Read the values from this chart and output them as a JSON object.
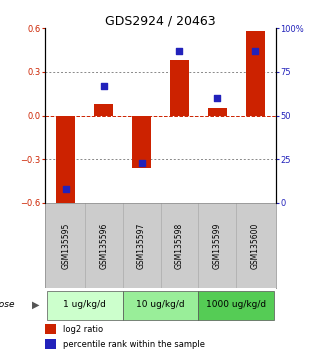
{
  "title": "GDS2924 / 20463",
  "samples": [
    "GSM135595",
    "GSM135596",
    "GSM135597",
    "GSM135598",
    "GSM135599",
    "GSM135600"
  ],
  "log2_ratio": [
    -0.63,
    0.08,
    -0.36,
    0.38,
    0.05,
    0.58
  ],
  "percentile_rank": [
    8,
    67,
    23,
    87,
    60,
    87
  ],
  "ylim_left": [
    -0.6,
    0.6
  ],
  "ylim_right": [
    0,
    100
  ],
  "yticks_left": [
    -0.6,
    -0.3,
    0,
    0.3,
    0.6
  ],
  "yticks_right": [
    0,
    25,
    50,
    75,
    100
  ],
  "ytick_labels_right": [
    "0",
    "25",
    "50",
    "75",
    "100%"
  ],
  "bar_color": "#cc2200",
  "dot_color": "#2222bb",
  "dose_groups": [
    {
      "label": "1 ug/kg/d",
      "samples": [
        0,
        1
      ],
      "color": "#ccffcc"
    },
    {
      "label": "10 ug/kg/d",
      "samples": [
        2,
        3
      ],
      "color": "#99ee99"
    },
    {
      "label": "1000 ug/kg/d",
      "samples": [
        4,
        5
      ],
      "color": "#55cc55"
    }
  ],
  "dose_label": "dose",
  "legend_bar_label": "log2 ratio",
  "legend_dot_label": "percentile rank within the sample",
  "title_fontsize": 9,
  "tick_fontsize": 6,
  "sample_label_fontsize": 5.5,
  "dose_fontsize": 6.5,
  "legend_fontsize": 6,
  "bg_color": "#ffffff",
  "sample_bg_color": "#cccccc",
  "bar_width": 0.5
}
